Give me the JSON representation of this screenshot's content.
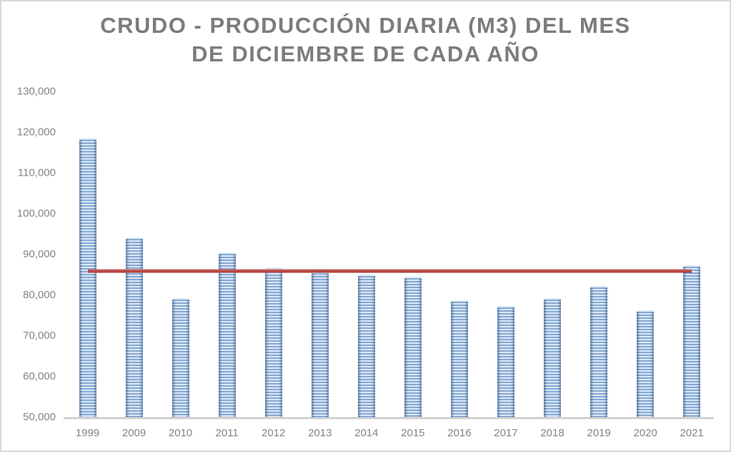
{
  "title": {
    "line1": "CRUDO - PRODUCCIÓN DIARIA (M3) DEL MES",
    "line2": "DE DICIEMBRE DE CADA AÑO"
  },
  "chart_data": {
    "type": "bar",
    "title": "CRUDO - PRODUCCIÓN DIARIA (M3) DEL MES DE DICIEMBRE DE CADA AÑO",
    "categories": [
      "1999",
      "2009",
      "2010",
      "2011",
      "2012",
      "2013",
      "2014",
      "2015",
      "2016",
      "2017",
      "2018",
      "2019",
      "2020",
      "2021"
    ],
    "values": [
      118400,
      94000,
      79100,
      90300,
      86700,
      85600,
      84900,
      84400,
      78600,
      77200,
      79100,
      82100,
      76100,
      87200
    ],
    "series_name": "Producción diaria (m3)",
    "average_line": {
      "value": 85960,
      "color": "#BE4B48",
      "from_category": "1999",
      "to_category": "2021"
    },
    "ylim": [
      50000,
      130000
    ],
    "ytick_step": 10000,
    "ytick_labels": [
      "130,000",
      "120,000",
      "110,000",
      "100,000",
      "90,000",
      "80,000",
      "70,000",
      "60,000",
      "50,000"
    ],
    "xlabel": "",
    "ylabel": "",
    "grid": false,
    "legend": false,
    "colors": {
      "bar_dark": "#6090C7",
      "bar_light": "#D9E5F4",
      "line": "#BE4B48",
      "title_text": "#7C7C7C",
      "axis_text": "#848484",
      "axis_line": "#D2D0D0",
      "frame_border": "#D9D9D9"
    }
  }
}
